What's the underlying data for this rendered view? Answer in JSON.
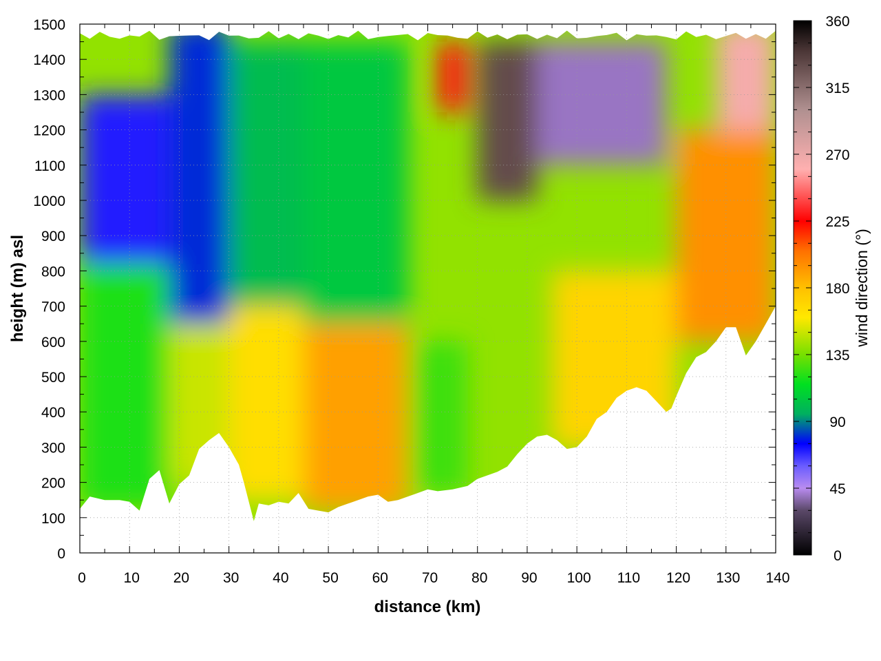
{
  "chart_data": {
    "type": "heatmap",
    "title": "",
    "xlabel": "distance (km)",
    "ylabel": "height (m) asl",
    "xlim": [
      0,
      140
    ],
    "ylim": [
      0,
      1500
    ],
    "xticks": [
      "0",
      "10",
      "20",
      "30",
      "40",
      "50",
      "60",
      "70",
      "80",
      "90",
      "100",
      "110",
      "120",
      "130",
      "140"
    ],
    "yticks": [
      "0",
      "100",
      "200",
      "300",
      "400",
      "500",
      "600",
      "700",
      "800",
      "900",
      "1000",
      "1100",
      "1200",
      "1300",
      "1400",
      "1500"
    ],
    "grid": true,
    "colorbar": {
      "label": "wind direction (°)",
      "range": [
        0,
        360
      ],
      "ticks": [
        "0",
        "45",
        "90",
        "135",
        "180",
        "225",
        "270",
        "315",
        "360"
      ],
      "colormap": [
        [
          0,
          "#000000"
        ],
        [
          30,
          "#5a4868"
        ],
        [
          45,
          "#b98cf0"
        ],
        [
          60,
          "#6a5cff"
        ],
        [
          75,
          "#0000ff"
        ],
        [
          95,
          "#00b060"
        ],
        [
          115,
          "#00e020"
        ],
        [
          135,
          "#77e000"
        ],
        [
          160,
          "#ffe800"
        ],
        [
          180,
          "#ffc000"
        ],
        [
          205,
          "#ff7000"
        ],
        [
          225,
          "#ff0000"
        ],
        [
          260,
          "#ffb0b0"
        ],
        [
          300,
          "#b09090"
        ],
        [
          340,
          "#4a3535"
        ],
        [
          360,
          "#000000"
        ]
      ]
    },
    "terrain": {
      "x": [
        0,
        2,
        5,
        8,
        10,
        12,
        14,
        16,
        18,
        20,
        22,
        24,
        26,
        28,
        30,
        32,
        33,
        35,
        36,
        38,
        40,
        42,
        44,
        46,
        48,
        50,
        52,
        54,
        56,
        58,
        60,
        62,
        64,
        66,
        68,
        70,
        72,
        75,
        78,
        80,
        82,
        84,
        86,
        88,
        90,
        92,
        94,
        96,
        98,
        100,
        102,
        104,
        106,
        108,
        110,
        112,
        114,
        116,
        118,
        119,
        120,
        122,
        124,
        126,
        128,
        130,
        132,
        134,
        136,
        138,
        140
      ],
      "height": [
        125,
        160,
        150,
        150,
        145,
        120,
        210,
        235,
        140,
        195,
        220,
        295,
        320,
        340,
        300,
        250,
        200,
        90,
        140,
        135,
        145,
        140,
        170,
        125,
        120,
        115,
        130,
        140,
        150,
        160,
        165,
        145,
        150,
        160,
        170,
        180,
        175,
        180,
        190,
        210,
        220,
        230,
        245,
        280,
        310,
        330,
        335,
        320,
        295,
        300,
        330,
        380,
        400,
        440,
        460,
        470,
        460,
        430,
        400,
        410,
        445,
        510,
        555,
        570,
        600,
        640,
        640,
        560,
        600,
        650,
        700
      ]
    },
    "wind_direction_zones": [
      {
        "x_range": [
          0,
          18
        ],
        "height_range": [
          130,
          820
        ],
        "direction": 120
      },
      {
        "x_range": [
          0,
          18
        ],
        "height_range": [
          820,
          1300
        ],
        "direction": 70
      },
      {
        "x_range": [
          18,
          30
        ],
        "height_range": [
          200,
          650
        ],
        "direction": 150
      },
      {
        "x_range": [
          18,
          30
        ],
        "height_range": [
          650,
          1500
        ],
        "direction": 80
      },
      {
        "x_range": [
          30,
          45
        ],
        "height_range": [
          150,
          700
        ],
        "direction": 165
      },
      {
        "x_range": [
          30,
          45
        ],
        "height_range": [
          700,
          1450
        ],
        "direction": 100
      },
      {
        "x_range": [
          45,
          66
        ],
        "height_range": [
          120,
          650
        ],
        "direction": 190
      },
      {
        "x_range": [
          45,
          66
        ],
        "height_range": [
          650,
          1450
        ],
        "direction": 105
      },
      {
        "x_range": [
          67,
          78
        ],
        "height_range": [
          170,
          600
        ],
        "direction": 125
      },
      {
        "x_range": [
          72,
          78
        ],
        "height_range": [
          1250,
          1450
        ],
        "direction": 230
      },
      {
        "x_range": [
          80,
          92
        ],
        "height_range": [
          1000,
          1450
        ],
        "direction": 330
      },
      {
        "x_range": [
          92,
          118
        ],
        "height_range": [
          1100,
          1450
        ],
        "direction": 40
      },
      {
        "x_range": [
          95,
          120
        ],
        "height_range": [
          300,
          800
        ],
        "direction": 170
      },
      {
        "x_range": [
          120,
          140
        ],
        "height_range": [
          600,
          1200
        ],
        "direction": 195
      },
      {
        "x_range": [
          128,
          140
        ],
        "height_range": [
          1200,
          1500
        ],
        "direction": 265
      }
    ]
  }
}
